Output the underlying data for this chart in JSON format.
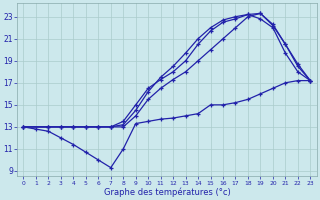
{
  "xlabel": "Graphe des températures (°c)",
  "xlim": [
    -0.5,
    23.5
  ],
  "ylim": [
    8.5,
    24.2
  ],
  "xticks": [
    0,
    1,
    2,
    3,
    4,
    5,
    6,
    7,
    8,
    9,
    10,
    11,
    12,
    13,
    14,
    15,
    16,
    17,
    18,
    19,
    20,
    21,
    22,
    23
  ],
  "yticks": [
    9,
    11,
    13,
    15,
    17,
    19,
    21,
    23
  ],
  "bg_color": "#cce8ec",
  "line_color": "#2222aa",
  "grid_color": "#aacccc",
  "line_min_x": [
    0,
    1,
    2,
    3,
    4,
    5,
    6,
    7,
    8,
    9,
    10,
    11,
    12,
    13,
    14,
    15,
    16,
    17,
    18,
    19,
    20,
    21,
    22,
    23
  ],
  "line_min_y": [
    13.0,
    12.8,
    12.6,
    12.0,
    11.4,
    10.7,
    10.0,
    9.3,
    11.0,
    13.3,
    13.5,
    13.7,
    13.8,
    14.0,
    14.2,
    15.0,
    15.0,
    15.2,
    15.5,
    16.0,
    16.5,
    17.0,
    17.2,
    17.2
  ],
  "line_a_x": [
    0,
    2,
    3,
    4,
    5,
    6,
    7,
    8,
    9,
    10,
    11,
    12,
    13,
    14,
    15,
    16,
    17,
    18,
    19,
    20,
    21,
    22,
    23
  ],
  "line_a_y": [
    13.0,
    13.0,
    13.0,
    13.0,
    13.0,
    13.0,
    13.0,
    13.0,
    14.0,
    15.5,
    16.5,
    17.3,
    18.0,
    19.0,
    20.0,
    21.0,
    22.0,
    23.0,
    23.3,
    22.2,
    20.5,
    18.5,
    17.2
  ],
  "line_b_x": [
    0,
    2,
    3,
    4,
    5,
    6,
    7,
    8,
    9,
    10,
    11,
    12,
    13,
    14,
    15,
    16,
    17,
    18,
    19,
    20,
    21,
    22,
    23
  ],
  "line_b_y": [
    13.0,
    13.0,
    13.0,
    13.0,
    13.0,
    13.0,
    13.0,
    13.2,
    14.5,
    16.2,
    17.5,
    18.5,
    19.7,
    21.0,
    22.0,
    22.7,
    23.0,
    23.2,
    23.3,
    22.3,
    20.5,
    18.7,
    17.2
  ],
  "line_c_x": [
    0,
    2,
    3,
    4,
    5,
    6,
    7,
    8,
    9,
    10,
    11,
    12,
    13,
    14,
    15,
    16,
    17,
    18,
    19,
    20,
    21,
    22,
    23
  ],
  "line_c_y": [
    13.0,
    13.0,
    13.0,
    13.0,
    13.0,
    13.0,
    13.0,
    13.5,
    15.0,
    16.5,
    17.3,
    18.0,
    19.0,
    20.5,
    21.7,
    22.5,
    22.8,
    23.2,
    22.8,
    22.0,
    19.7,
    18.0,
    17.2
  ]
}
